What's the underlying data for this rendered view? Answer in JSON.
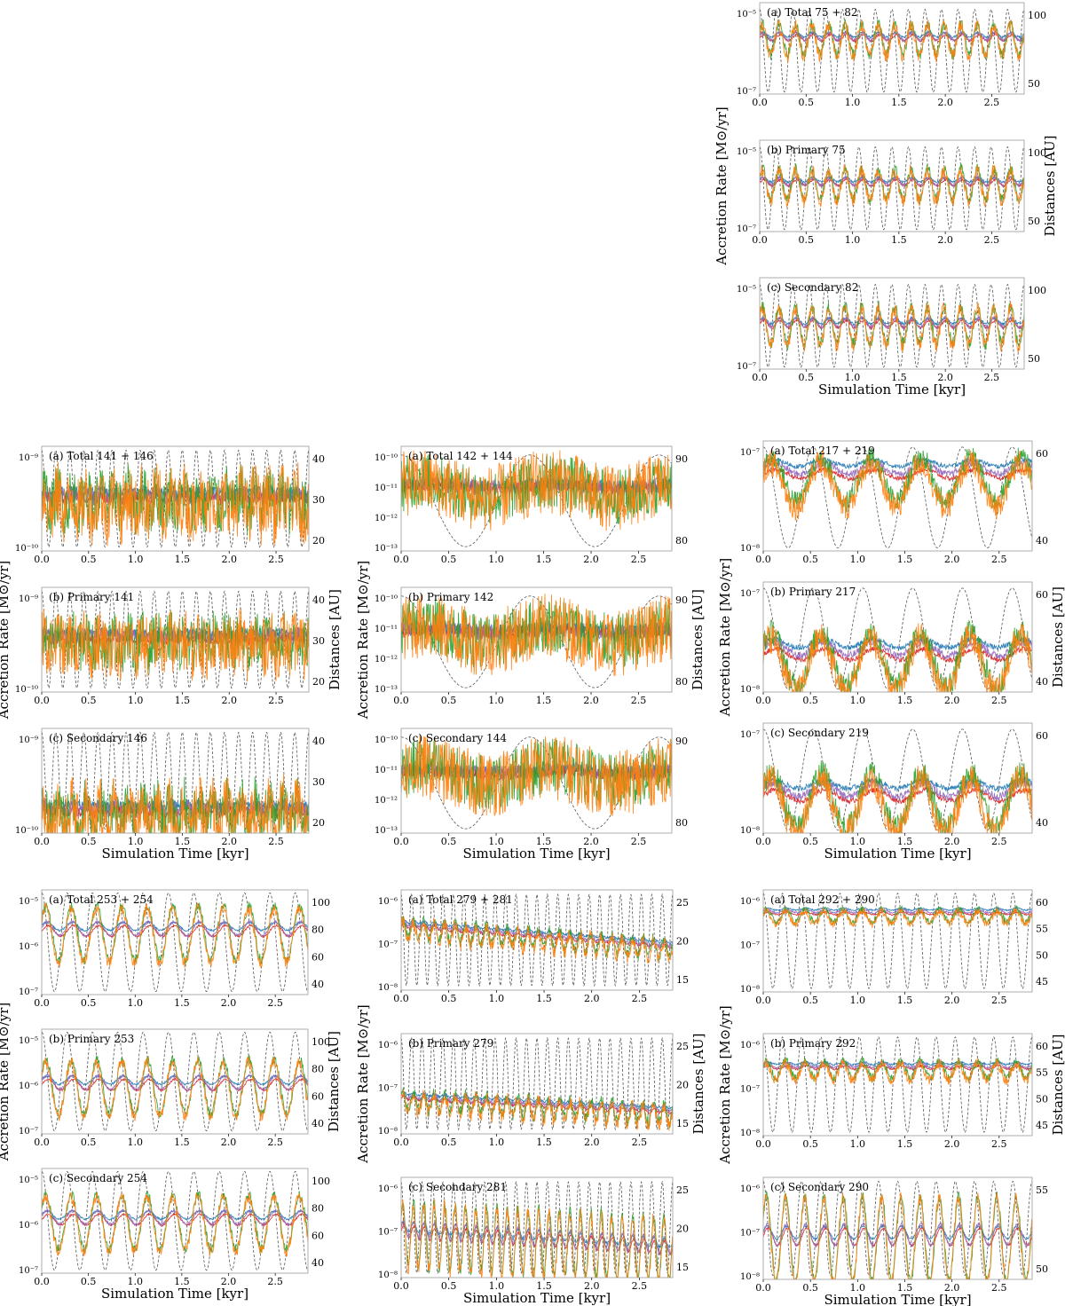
{
  "figure": {
    "series_colors": {
      "accretion_orange": "#ff7f0e",
      "accretion_green": "#2ca02c",
      "accretion_red": "#d62728",
      "accretion_purple": "#9467bd",
      "accretion_blue": "#1f77b4",
      "distance_dashed_gray": "#555555"
    }
  },
  "chart_data": [
    {
      "type": "line",
      "group": "75 + 82",
      "xlabel": "Simulation Time [kyr]",
      "ylabel": "Accretion Rate [M⊙/yr]",
      "y2label": "Distances [AU]",
      "xticks": [
        "0.0",
        "0.5",
        "1.0",
        "1.5",
        "2.0",
        "2.5"
      ],
      "panels": [
        {
          "title": "(a) Total 75 + 82",
          "yscale": "log",
          "ylim": [
            1e-07,
            0.0001
          ],
          "yticks": [
            "10⁻⁵",
            "10⁻⁷"
          ],
          "y2ticks": [
            "100",
            "50"
          ],
          "y2lim": [
            20,
            115
          ],
          "dist_cycles": 16,
          "dist_range": [
            22,
            108
          ],
          "rate_center": 7e-06,
          "rate_spread": 0.5,
          "noise": 0.45,
          "rate_cycles": 16
        },
        {
          "title": "(b) Primary 75",
          "yscale": "log",
          "ylim": [
            1e-07,
            0.0001
          ],
          "yticks": [
            "10⁻⁵",
            "10⁻⁷"
          ],
          "y2ticks": [
            "100",
            "50"
          ],
          "y2lim": [
            20,
            115
          ],
          "dist_cycles": 16,
          "dist_range": [
            22,
            108
          ],
          "rate_center": 4e-06,
          "rate_spread": 0.5,
          "noise": 0.45,
          "rate_cycles": 16
        },
        {
          "title": "(c) Secondary 82",
          "yscale": "log",
          "ylim": [
            1e-07,
            0.0001
          ],
          "yticks": [
            "10⁻⁵",
            "10⁻⁷"
          ],
          "y2ticks": [
            "100",
            "50"
          ],
          "y2lim": [
            20,
            115
          ],
          "dist_cycles": 16,
          "dist_range": [
            22,
            108
          ],
          "rate_center": 3e-06,
          "rate_spread": 0.6,
          "noise": 0.5,
          "rate_cycles": 16
        }
      ]
    },
    {
      "type": "line",
      "group": "141 + 146",
      "xlabel": "Simulation Time [kyr]",
      "ylabel": "Accretion Rate [M⊙/yr]",
      "y2label": "Distances [AU]",
      "xticks": [
        "0.0",
        "0.5",
        "1.0",
        "1.5",
        "2.0",
        "2.5"
      ],
      "panels": [
        {
          "title": "(a) Total 141 + 146",
          "yscale": "log",
          "ylim": [
            5e-11,
            3e-09
          ],
          "yticks": [
            "10⁻⁹",
            "10⁻¹⁰"
          ],
          "y2ticks": [
            "40",
            "30",
            "20"
          ],
          "y2lim": [
            15,
            42
          ],
          "dist_cycles": 19,
          "dist_range": [
            16,
            41
          ],
          "rate_center": 4e-10,
          "rate_spread": 0.15,
          "noise": 1.2,
          "rate_cycles": 19
        },
        {
          "title": "(b) Primary 141",
          "yscale": "log",
          "ylim": [
            5e-11,
            3e-09
          ],
          "yticks": [
            "10⁻⁹",
            "10⁻¹⁰"
          ],
          "y2ticks": [
            "40",
            "30",
            "20"
          ],
          "y2lim": [
            15,
            42
          ],
          "dist_cycles": 19,
          "dist_range": [
            16,
            41
          ],
          "rate_center": 4e-10,
          "rate_spread": 0.1,
          "noise": 1.1,
          "rate_cycles": 19
        },
        {
          "title": "(c) Secondary 146",
          "yscale": "log",
          "ylim": [
            5e-11,
            3e-09
          ],
          "yticks": [
            "10⁻⁹",
            "10⁻¹⁰"
          ],
          "y2ticks": [
            "40",
            "30",
            "20"
          ],
          "y2lim": [
            15,
            42
          ],
          "dist_cycles": 19,
          "dist_range": [
            16,
            41
          ],
          "rate_center": 1.2e-10,
          "rate_spread": 0.2,
          "noise": 1.1,
          "rate_cycles": 19
        }
      ]
    },
    {
      "type": "line",
      "group": "142 + 144",
      "xlabel": "Simulation Time [kyr]",
      "ylabel": "Accretion Rate [M⊙/yr]",
      "y2label": "Distances [AU]",
      "xticks": [
        "0.0",
        "0.5",
        "1.0",
        "1.5",
        "2.0",
        "2.5"
      ],
      "panels": [
        {
          "title": "(a) Total 142 + 144",
          "yscale": "log",
          "ylim": [
            1e-13,
            6e-10
          ],
          "yticks": [
            "10⁻¹⁰",
            "10⁻¹¹",
            "10⁻¹²",
            "10⁻¹³"
          ],
          "y2ticks": [
            "90",
            "80"
          ],
          "y2lim": [
            73,
            97
          ],
          "dist_cycles": 2.1,
          "dist_range": [
            74,
            95
          ],
          "rate_center": 2e-11,
          "rate_spread": 0.3,
          "noise": 2.5,
          "rate_cycles": 2.1
        },
        {
          "title": "(b) Primary 142",
          "yscale": "log",
          "ylim": [
            1e-13,
            6e-10
          ],
          "yticks": [
            "10⁻¹⁰",
            "10⁻¹¹",
            "10⁻¹²",
            "10⁻¹³"
          ],
          "y2ticks": [
            "90",
            "80"
          ],
          "y2lim": [
            73,
            97
          ],
          "dist_cycles": 2.1,
          "dist_range": [
            74,
            95
          ],
          "rate_center": 1.5e-11,
          "rate_spread": 0.3,
          "noise": 2.5,
          "rate_cycles": 2.1
        },
        {
          "title": "(c) Secondary 144",
          "yscale": "log",
          "ylim": [
            1e-13,
            6e-10
          ],
          "yticks": [
            "10⁻¹⁰",
            "10⁻¹¹",
            "10⁻¹²",
            "10⁻¹³"
          ],
          "y2ticks": [
            "90",
            "80"
          ],
          "y2lim": [
            73,
            97
          ],
          "dist_cycles": 2.1,
          "dist_range": [
            74,
            95
          ],
          "rate_center": 1.5e-11,
          "rate_spread": 0.3,
          "noise": 2.5,
          "rate_cycles": 2.1
        }
      ]
    },
    {
      "type": "line",
      "group": "217 + 219",
      "xlabel": "Simulation Time [kyr]",
      "ylabel": "Accretion Rate [M⊙/yr]",
      "y2label": "Distances [AU]",
      "xticks": [
        "0.0",
        "0.5",
        "1.0",
        "1.5",
        "2.0",
        "2.5"
      ],
      "panels": [
        {
          "title": "(a) Total 217 + 219",
          "yscale": "log",
          "ylim": [
            1e-08,
            1e-07
          ],
          "yticks": [
            "10⁻⁷",
            "10⁻⁸"
          ],
          "y2ticks": [
            "60",
            "40"
          ],
          "y2lim": [
            32,
            68
          ],
          "dist_cycles": 5.4,
          "dist_range": [
            33,
            66
          ],
          "rate_center": 5e-08,
          "rate_spread": 0.2,
          "noise": 0.25,
          "rate_cycles": 5.4
        },
        {
          "title": "(b) Primary 217",
          "yscale": "log",
          "ylim": [
            1e-08,
            1e-07
          ],
          "yticks": [
            "10⁻⁷",
            "10⁻⁸"
          ],
          "y2ticks": [
            "60",
            "40"
          ],
          "y2lim": [
            32,
            68
          ],
          "dist_cycles": 5.4,
          "dist_range": [
            33,
            66
          ],
          "rate_center": 2.2e-08,
          "rate_spread": 0.25,
          "noise": 0.3,
          "rate_cycles": 5.4
        },
        {
          "title": "(c) Secondary 219",
          "yscale": "log",
          "ylim": [
            1e-08,
            1e-07
          ],
          "yticks": [
            "10⁻⁷",
            "10⁻⁸"
          ],
          "y2ticks": [
            "60",
            "40"
          ],
          "y2lim": [
            32,
            68
          ],
          "dist_cycles": 5.4,
          "dist_range": [
            33,
            66
          ],
          "rate_center": 2.2e-08,
          "rate_spread": 0.25,
          "noise": 0.3,
          "rate_cycles": 5.4
        }
      ]
    },
    {
      "type": "line",
      "group": "253 + 254",
      "xlabel": "Simulation Time [kyr]",
      "ylabel": "Accretion Rate [M⊙/yr]",
      "y2label": "Distances [AU]",
      "xticks": [
        "0.0",
        "0.5",
        "1.0",
        "1.5",
        "2.0",
        "2.5"
      ],
      "panels": [
        {
          "title": "(a) Total 253 + 254",
          "yscale": "log",
          "ylim": [
            1e-07,
            2e-05
          ],
          "yticks": [
            "10⁻⁵",
            "10⁻⁶",
            "10⁻⁷"
          ],
          "y2ticks": [
            "100",
            "80",
            "60",
            "40"
          ],
          "y2lim": [
            38,
            108
          ],
          "dist_cycles": 10.5,
          "dist_range": [
            40,
            106
          ],
          "rate_center": 2.5e-06,
          "rate_spread": 0.6,
          "noise": 0.25,
          "rate_cycles": 10.5
        },
        {
          "title": "(b) Primary 253",
          "yscale": "log",
          "ylim": [
            1e-07,
            2e-05
          ],
          "yticks": [
            "10⁻⁵",
            "10⁻⁶",
            "10⁻⁷"
          ],
          "y2ticks": [
            "100",
            "80",
            "60",
            "40"
          ],
          "y2lim": [
            38,
            108
          ],
          "dist_cycles": 10.5,
          "dist_range": [
            40,
            106
          ],
          "rate_center": 1.2e-06,
          "rate_spread": 0.6,
          "noise": 0.25,
          "rate_cycles": 10.5
        },
        {
          "title": "(c) Secondary 254",
          "yscale": "log",
          "ylim": [
            1e-07,
            2e-05
          ],
          "yticks": [
            "10⁻⁵",
            "10⁻⁶",
            "10⁻⁷"
          ],
          "y2ticks": [
            "100",
            "80",
            "60",
            "40"
          ],
          "y2lim": [
            38,
            108
          ],
          "dist_cycles": 10.5,
          "dist_range": [
            40,
            106
          ],
          "rate_center": 1.5e-06,
          "rate_spread": 0.6,
          "noise": 0.25,
          "rate_cycles": 10.5
        }
      ]
    },
    {
      "type": "line",
      "group": "279 + 281",
      "xlabel": "Simulation Time [kyr]",
      "ylabel": "Accretion Rate [M⊙/yr]",
      "y2label": "Distances [AU]",
      "xticks": [
        "0.0",
        "0.5",
        "1.0",
        "1.5",
        "2.0",
        "2.5"
      ],
      "panels": [
        {
          "title": "(a) Total 279 + 281",
          "yscale": "log",
          "ylim": [
            1e-08,
            1.5e-06
          ],
          "yticks": [
            "10⁻⁶",
            "10⁻⁷",
            "10⁻⁸"
          ],
          "y2ticks": [
            "25",
            "20",
            "15"
          ],
          "y2lim": [
            14.5,
            25.5
          ],
          "dist_cycles": 26,
          "dist_range": [
            15,
            25
          ],
          "rate_center": 2.5e-07,
          "rate_spread": 0.2,
          "noise": 0.3,
          "rate_cycles": 26,
          "trend": -0.45
        },
        {
          "title": "(b) Primary 279",
          "yscale": "log",
          "ylim": [
            1e-08,
            1.5e-06
          ],
          "yticks": [
            "10⁻⁶",
            "10⁻⁷",
            "10⁻⁸"
          ],
          "y2ticks": [
            "25",
            "20",
            "15"
          ],
          "y2lim": [
            14.5,
            25.5
          ],
          "dist_cycles": 26,
          "dist_range": [
            15,
            25
          ],
          "rate_center": 6e-08,
          "rate_spread": 0.2,
          "noise": 0.3,
          "rate_cycles": 26,
          "trend": -0.3
        },
        {
          "title": "(c) Secondary 281",
          "yscale": "log",
          "ylim": [
            1e-08,
            1.5e-06
          ],
          "yticks": [
            "10⁻⁶",
            "10⁻⁷",
            "10⁻⁸"
          ],
          "y2ticks": [
            "25",
            "20",
            "15"
          ],
          "y2lim": [
            14.5,
            25.5
          ],
          "dist_cycles": 26,
          "dist_range": [
            15,
            25
          ],
          "rate_center": 1e-07,
          "rate_spread": 0.7,
          "noise": 0.35,
          "rate_cycles": 26,
          "trend": -0.35
        }
      ]
    },
    {
      "type": "line",
      "group": "292 + 290",
      "xlabel": "Simulation Time [kyr]",
      "ylabel": "Accretion Rate [M⊙/yr]",
      "y2label": "Distances [AU]",
      "xticks": [
        "0.0",
        "0.5",
        "1.0",
        "1.5",
        "2.0",
        "2.5"
      ],
      "panels": [
        {
          "title": "(a) Total 292 + 290",
          "yscale": "log",
          "ylim": [
            1e-08,
            2.5e-06
          ],
          "yticks": [
            "10⁻⁶",
            "10⁻⁷",
            "10⁻⁸"
          ],
          "y2ticks": [
            "60",
            "55",
            "50",
            "45"
          ],
          "y2lim": [
            45,
            60
          ],
          "dist_cycles": 14,
          "dist_range": [
            45.5,
            59.5
          ],
          "rate_center": 7e-07,
          "rate_spread": 0.15,
          "noise": 0.2,
          "rate_cycles": 14
        },
        {
          "title": "(b) Primary 292",
          "yscale": "log",
          "ylim": [
            1e-08,
            2.5e-06
          ],
          "yticks": [
            "10⁻⁶",
            "10⁻⁷",
            "10⁻⁸"
          ],
          "y2ticks": [
            "60",
            "55",
            "50",
            "45"
          ],
          "y2lim": [
            45,
            60
          ],
          "dist_cycles": 14,
          "dist_range": [
            45.5,
            59.5
          ],
          "rate_center": 4e-07,
          "rate_spread": 0.2,
          "noise": 0.25,
          "rate_cycles": 14
        },
        {
          "title": "(c) Secondary 290",
          "yscale": "log",
          "ylim": [
            1e-08,
            2.5e-06
          ],
          "yticks": [
            "10⁻⁶",
            "10⁻⁷",
            "10⁻⁸"
          ],
          "y2ticks": [
            "55",
            "50"
          ],
          "y2lim": [
            45,
            58
          ],
          "dist_cycles": 14,
          "dist_range": [
            45.5,
            57.5
          ],
          "rate_center": 1e-07,
          "rate_spread": 1.0,
          "noise": 0.3,
          "rate_cycles": 14
        }
      ]
    }
  ]
}
